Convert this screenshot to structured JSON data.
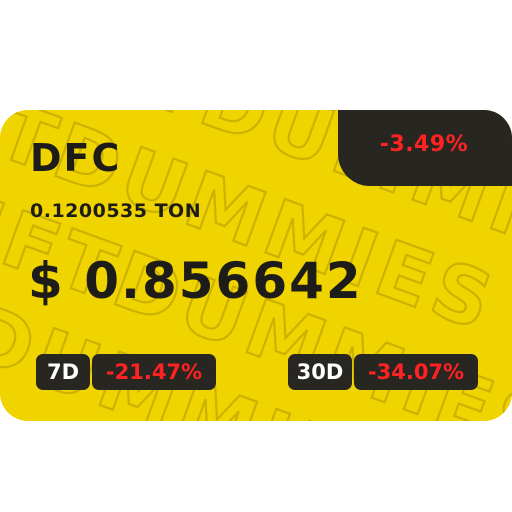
{
  "card": {
    "symbol": "DFC",
    "ton_price": "0.1200535 TON",
    "usd_price": "$ 0.856642",
    "change_24h": "-3.49%",
    "change_7d_label": "7D",
    "change_7d_value": "-21.47%",
    "change_30d_label": "30D",
    "change_30d_value": "-34.07%",
    "watermark": "NFTDUMMIES"
  },
  "colors": {
    "background": "#f0d400",
    "dark_box": "#282620",
    "negative": "#ff2222",
    "text": "#1e1c18",
    "white_text": "#ffffff"
  }
}
